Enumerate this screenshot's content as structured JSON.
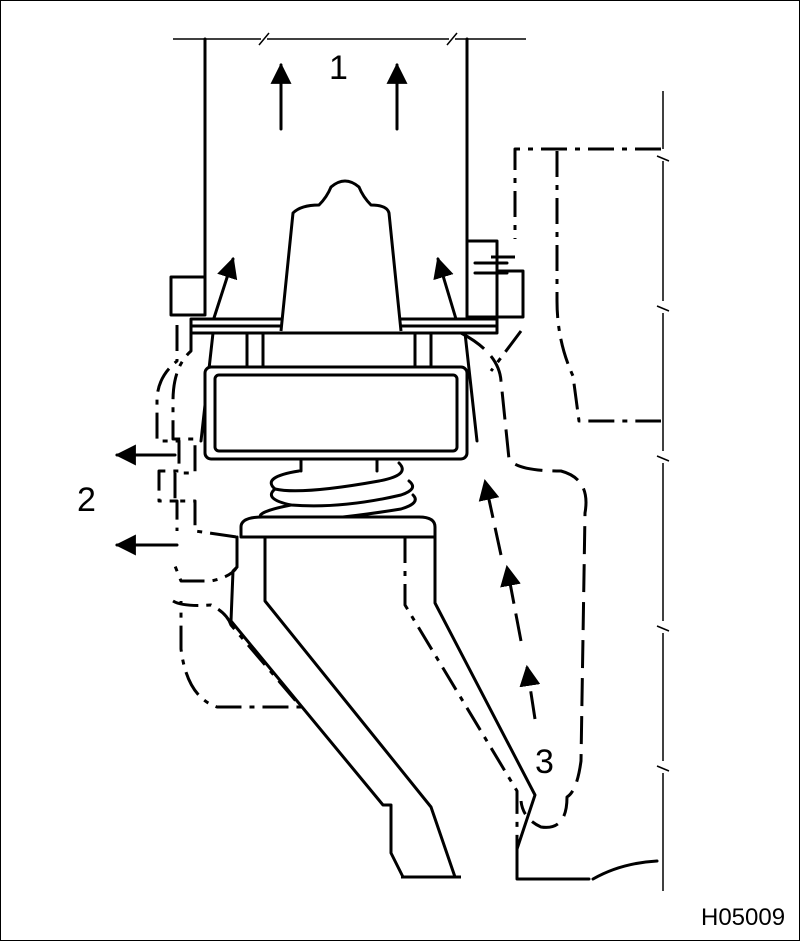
{
  "diagram": {
    "callouts": {
      "label_1": "1",
      "label_2": "2",
      "label_3": "3"
    },
    "figure_code": "H05009"
  }
}
